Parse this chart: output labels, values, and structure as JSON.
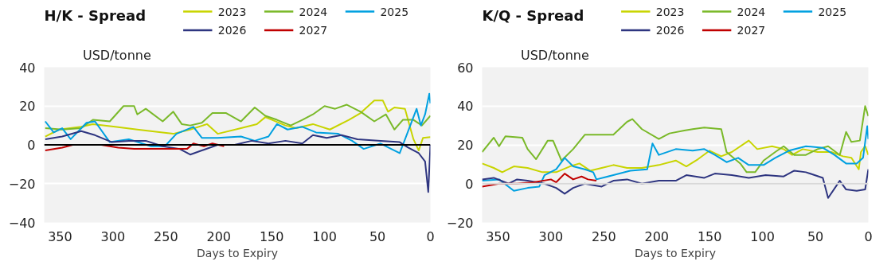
{
  "chart_data": [
    {
      "type": "line",
      "title": "H/K - Spread",
      "ylabel": "USD/tonne",
      "xlabel": "Days to Expiry",
      "xlim": [
        365,
        0
      ],
      "xticks": [
        350,
        300,
        250,
        200,
        150,
        100,
        50,
        0
      ],
      "ylim": [
        -40,
        40
      ],
      "yticks": [
        -40,
        -20,
        0,
        20,
        40
      ],
      "grid": "y",
      "legend": "top",
      "line_style": "solid",
      "ref_lines": [
        {
          "axis": "y",
          "value": 0,
          "color": "#000000"
        }
      ],
      "series": [
        {
          "name": "2023",
          "color": "#c8d400",
          "x": [
            364,
            351,
            330,
            319,
            298,
            277,
            253,
            243,
            227,
            211,
            201,
            179,
            164,
            156,
            137,
            127,
            111,
            95,
            77,
            66,
            53,
            45,
            40,
            34,
            24,
            16,
            11,
            7,
            0
          ],
          "values": [
            4.3,
            7.9,
            9.3,
            10.7,
            9.3,
            7.9,
            6.4,
            5.7,
            7.9,
            10.7,
            5.7,
            8.6,
            10.7,
            14.3,
            10,
            8.6,
            10.7,
            7.9,
            12.9,
            16.4,
            22.9,
            22.9,
            17.1,
            19.3,
            18.6,
            2.9,
            -2.9,
            3.6,
            4
          ]
        },
        {
          "name": "2024",
          "color": "#7ab929",
          "x": [
            364,
            348,
            330,
            319,
            303,
            290,
            280,
            277,
            269,
            253,
            243,
            235,
            227,
            216,
            206,
            193,
            179,
            166,
            156,
            145,
            132,
            121,
            111,
            100,
            90,
            79,
            66,
            53,
            42,
            34,
            26,
            16,
            8,
            0
          ],
          "values": [
            8.6,
            7.9,
            8.6,
            12.9,
            12.1,
            20,
            20,
            15.7,
            18.6,
            12.1,
            17.1,
            10.7,
            10,
            11.4,
            16.4,
            16.4,
            12.1,
            19.3,
            15,
            12.9,
            10,
            12.9,
            15.7,
            20,
            18.6,
            20.7,
            17.1,
            12.1,
            15.7,
            7.9,
            12.9,
            12.9,
            10,
            15
          ]
        },
        {
          "name": "2025",
          "color": "#00a0e0",
          "x": [
            364,
            356,
            348,
            340,
            325,
            317,
            303,
            285,
            264,
            251,
            240,
            224,
            216,
            201,
            179,
            166,
            153,
            145,
            135,
            121,
            108,
            87,
            74,
            63,
            47,
            37,
            29,
            21,
            13,
            9,
            5,
            1,
            0
          ],
          "values": [
            12.1,
            6.4,
            8.6,
            2.9,
            11.4,
            12.1,
            1.4,
            2.9,
            -0.7,
            -0.7,
            5.7,
            9.3,
            3.6,
            3.6,
            4.3,
            2.1,
            4.3,
            10.7,
            7.9,
            9.3,
            6.4,
            5.7,
            2.1,
            -2.1,
            0.7,
            -2.1,
            -4.3,
            7.1,
            18.6,
            10,
            15.7,
            26.4,
            21.4
          ]
        },
        {
          "name": "2026",
          "color": "#2e3580",
          "x": [
            364,
            348,
            330,
            317,
            301,
            285,
            269,
            253,
            237,
            227,
            216,
            201,
            185,
            169,
            153,
            137,
            121,
            111,
            98,
            84,
            69,
            47,
            29,
            21,
            11,
            5,
            2,
            0
          ],
          "values": [
            2.9,
            4.3,
            7.1,
            5,
            1.4,
            2.1,
            2.1,
            -0.7,
            -2.1,
            -5,
            -2.9,
            0,
            0,
            2.1,
            0.7,
            2.1,
            0.7,
            5,
            3.6,
            5,
            2.9,
            2.1,
            1.4,
            -1.4,
            -4.3,
            -8.6,
            -24.3,
            0
          ]
        },
        {
          "name": "2027",
          "color": "#c00000",
          "x": [
            364,
            348,
            338,
            311,
            295,
            280,
            259,
            237,
            230,
            224,
            214,
            206,
            195
          ],
          "values": [
            -2.9,
            -1.4,
            0,
            0,
            -1.4,
            -2.1,
            -2.1,
            -2.1,
            -2.1,
            0.7,
            -0.7,
            0.7,
            -0.7
          ]
        }
      ]
    },
    {
      "type": "line",
      "title": "K/Q - Spread",
      "ylabel": "USD/tonne",
      "xlabel": "Days to Expiry",
      "xlim": [
        365,
        0
      ],
      "xticks": [
        350,
        300,
        250,
        200,
        150,
        100,
        50,
        0
      ],
      "ylim": [
        -20,
        60
      ],
      "yticks": [
        -20,
        0,
        20,
        40,
        60
      ],
      "grid": "y",
      "legend": "top",
      "line_style": "solid",
      "ref_lines": [
        {
          "axis": "y",
          "value": 0,
          "color": "#d9d9d9"
        }
      ],
      "series": [
        {
          "name": "2023",
          "color": "#c8d400",
          "x": [
            365,
            354,
            346,
            335,
            322,
            308,
            295,
            282,
            273,
            263,
            252,
            241,
            228,
            214,
            198,
            182,
            172,
            161,
            150,
            139,
            129,
            113,
            105,
            91,
            80,
            72,
            62,
            48,
            35,
            24,
            16,
            9,
            7,
            3,
            0
          ],
          "values": [
            10.4,
            8.1,
            5.9,
            8.9,
            8.1,
            5.9,
            5.9,
            8.9,
            10.4,
            6.7,
            8.1,
            9.6,
            8.1,
            8.1,
            9.6,
            11.9,
            8.9,
            12.6,
            17,
            14.1,
            16.3,
            22.2,
            17.8,
            19.3,
            17.8,
            14.8,
            17.8,
            16.3,
            16.3,
            14.1,
            13.3,
            7.4,
            16.3,
            19.3,
            14.8
          ]
        },
        {
          "name": "2024",
          "color": "#7ab929",
          "x": [
            365,
            354,
            349,
            343,
            327,
            322,
            314,
            303,
            298,
            290,
            279,
            268,
            252,
            241,
            228,
            223,
            214,
            198,
            188,
            174,
            166,
            155,
            139,
            134,
            121,
            115,
            107,
            99,
            88,
            80,
            70,
            59,
            48,
            38,
            27,
            21,
            16,
            8,
            3,
            0
          ],
          "values": [
            16.3,
            23.7,
            19.3,
            24.4,
            23.7,
            17.8,
            12.6,
            22.2,
            22.2,
            11.9,
            17.8,
            25.2,
            25.2,
            25.2,
            31.9,
            33.3,
            28.1,
            23,
            25.9,
            27.4,
            28.1,
            28.9,
            28.1,
            16.3,
            10.4,
            5.9,
            5.9,
            11.9,
            16.3,
            19.3,
            14.8,
            14.8,
            17.8,
            19.3,
            14.8,
            26.7,
            21.5,
            22.2,
            40,
            34.8
          ]
        },
        {
          "name": "2025",
          "color": "#00a0e0",
          "x": [
            365,
            349,
            335,
            322,
            311,
            306,
            295,
            287,
            279,
            268,
            260,
            257,
            241,
            225,
            209,
            204,
            198,
            182,
            166,
            155,
            145,
            134,
            123,
            113,
            99,
            88,
            75,
            59,
            43,
            32,
            21,
            11,
            5,
            1,
            0
          ],
          "values": [
            1.5,
            2.2,
            -3.7,
            -2.2,
            -1.5,
            4.4,
            7.4,
            13.3,
            8.9,
            7.4,
            5.9,
            2.2,
            4.4,
            6.7,
            7.4,
            20.7,
            14.8,
            17.8,
            17,
            17.8,
            14.8,
            11.1,
            13.3,
            9.6,
            9.6,
            13.3,
            17,
            19.3,
            18.5,
            14.8,
            10.4,
            10.4,
            13.3,
            29.6,
            23
          ]
        },
        {
          "name": "2026",
          "color": "#2e3580",
          "x": [
            365,
            354,
            340,
            332,
            322,
            306,
            295,
            287,
            279,
            268,
            252,
            241,
            228,
            214,
            198,
            182,
            172,
            155,
            145,
            129,
            113,
            97,
            80,
            70,
            59,
            43,
            38,
            27,
            21,
            11,
            3,
            0
          ],
          "values": [
            2.2,
            3,
            0,
            2.2,
            1.5,
            0,
            -2.2,
            -5.2,
            -2.2,
            0,
            -1.5,
            1.5,
            2.2,
            0,
            1.5,
            1.5,
            4.4,
            3,
            5.2,
            4.4,
            3,
            4.4,
            3.7,
            6.7,
            5.9,
            3,
            -7.4,
            1.5,
            -3,
            -3.7,
            -3,
            7.4
          ]
        },
        {
          "name": "2027",
          "color": "#c00000",
          "x": [
            365,
            349,
            332,
            316,
            300,
            295,
            287,
            279,
            271,
            265,
            257
          ],
          "values": [
            -1.5,
            0,
            0,
            0.7,
            2.2,
            0.7,
            5.2,
            2.2,
            3.7,
            2.2,
            1.5
          ]
        }
      ]
    }
  ]
}
